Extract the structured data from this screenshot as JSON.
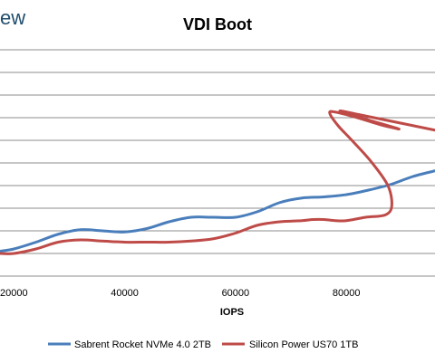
{
  "logo_fragment": "ew",
  "chart_data": {
    "type": "line",
    "title": "VDI Boot",
    "xlabel": "IOPS",
    "ylabel": "",
    "xlim": [
      17500,
      96000
    ],
    "x_ticks": [
      20000,
      40000,
      60000,
      80000
    ],
    "x_tick_labels": [
      "20000",
      "40000",
      "60000",
      "80000"
    ],
    "grid": true,
    "legend_position": "bottom",
    "series": [
      {
        "name": "Sabrent Rocket NVMe 4.0 2TB",
        "color": "#4a7ebb",
        "points": [
          [
            17500,
            0.22
          ],
          [
            20000,
            0.24
          ],
          [
            24000,
            0.3
          ],
          [
            28000,
            0.37
          ],
          [
            32000,
            0.41
          ],
          [
            36000,
            0.4
          ],
          [
            40000,
            0.39
          ],
          [
            44000,
            0.42
          ],
          [
            48000,
            0.48
          ],
          [
            52000,
            0.52
          ],
          [
            56000,
            0.52
          ],
          [
            60000,
            0.52
          ],
          [
            64000,
            0.57
          ],
          [
            68000,
            0.65
          ],
          [
            72000,
            0.69
          ],
          [
            76000,
            0.7
          ],
          [
            80000,
            0.72
          ],
          [
            84000,
            0.76
          ],
          [
            88000,
            0.81
          ],
          [
            92000,
            0.88
          ],
          [
            96000,
            0.93
          ]
        ]
      },
      {
        "name": "Silicon Power US70 1TB",
        "color": "#be4b48",
        "points": [
          [
            17500,
            0.2
          ],
          [
            20000,
            0.2
          ],
          [
            24000,
            0.24
          ],
          [
            28000,
            0.3
          ],
          [
            32000,
            0.32
          ],
          [
            36000,
            0.31
          ],
          [
            40000,
            0.3
          ],
          [
            44000,
            0.3
          ],
          [
            48000,
            0.3
          ],
          [
            52000,
            0.31
          ],
          [
            56000,
            0.33
          ],
          [
            60000,
            0.38
          ],
          [
            64000,
            0.45
          ],
          [
            68000,
            0.48
          ],
          [
            72000,
            0.49
          ],
          [
            74000,
            0.5
          ],
          [
            76000,
            0.5
          ],
          [
            78000,
            0.49
          ],
          [
            80000,
            0.49
          ],
          [
            83500,
            0.52
          ],
          [
            87000,
            0.54
          ],
          [
            88200,
            0.62
          ],
          [
            87500,
            0.8
          ],
          [
            84500,
            1.01
          ],
          [
            81000,
            1.2
          ],
          [
            78500,
            1.33
          ],
          [
            77000,
            1.44
          ],
          [
            78000,
            1.45
          ],
          [
            82000,
            1.4
          ],
          [
            86000,
            1.34
          ],
          [
            89500,
            1.3
          ],
          [
            84000,
            1.38
          ],
          [
            80000,
            1.44
          ],
          [
            79000,
            1.46
          ],
          [
            83000,
            1.42
          ],
          [
            88000,
            1.37
          ],
          [
            92000,
            1.33
          ],
          [
            96000,
            1.29
          ]
        ]
      }
    ]
  }
}
